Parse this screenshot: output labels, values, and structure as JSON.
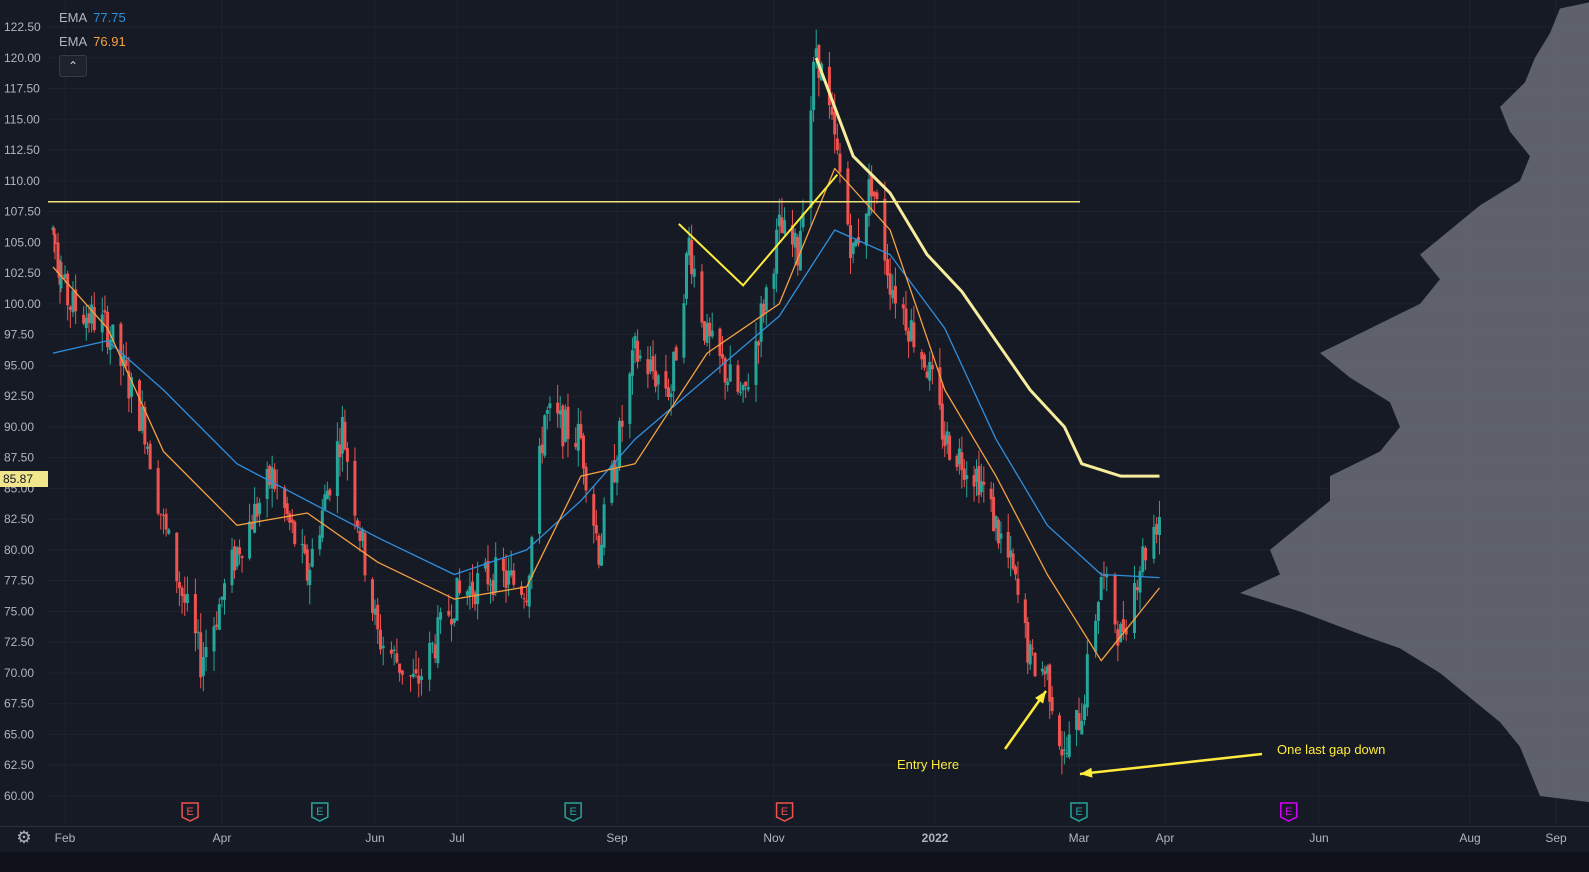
{
  "legend": {
    "ema1": {
      "label": "EMA",
      "value": "77.75",
      "color": "#2f8fdf"
    },
    "ema2": {
      "label": "EMA",
      "value": "76.91",
      "color": "#f5a142"
    }
  },
  "collapse_icon": "chevron-up-icon",
  "current_price": "85.87",
  "settings_icon": "gear-icon",
  "chart_data": {
    "type": "candlestick",
    "y_axis": {
      "range": [
        60,
        125
      ],
      "ticks": [
        "60.00",
        "62.50",
        "65.00",
        "67.50",
        "70.00",
        "72.50",
        "75.00",
        "77.50",
        "80.00",
        "82.50",
        "85.00",
        "87.50",
        "90.00",
        "92.50",
        "95.00",
        "97.50",
        "100.00",
        "102.50",
        "105.00",
        "107.50",
        "110.00",
        "112.50",
        "115.00",
        "117.50",
        "120.00",
        "122.50"
      ]
    },
    "x_axis": {
      "ticks": [
        "Feb",
        "Apr",
        "Jun",
        "Jul",
        "Sep",
        "Nov",
        "2022",
        "Mar",
        "Apr",
        "Jun",
        "Aug",
        "Sep"
      ]
    },
    "colors": {
      "up": "#26a69a",
      "down": "#ef5350",
      "grid": "#1f2330",
      "text": "#b2b5be",
      "annotation": "#ffeb3b",
      "horizontal_line": "#f2e27a",
      "volume_profile": "#6b6e78"
    },
    "price_path": [
      {
        "date": "2021-01-20",
        "price": 106
      },
      {
        "date": "2021-02-03",
        "price": 100
      },
      {
        "date": "2021-02-17",
        "price": 98
      },
      {
        "date": "2021-03-03",
        "price": 90
      },
      {
        "date": "2021-03-10",
        "price": 82
      },
      {
        "date": "2021-03-24",
        "price": 71
      },
      {
        "date": "2021-04-07",
        "price": 80
      },
      {
        "date": "2021-04-21",
        "price": 86
      },
      {
        "date": "2021-05-05",
        "price": 78
      },
      {
        "date": "2021-05-19",
        "price": 90
      },
      {
        "date": "2021-06-02",
        "price": 73
      },
      {
        "date": "2021-06-16",
        "price": 69
      },
      {
        "date": "2021-06-30",
        "price": 76
      },
      {
        "date": "2021-07-14",
        "price": 78
      },
      {
        "date": "2021-07-28",
        "price": 77
      },
      {
        "date": "2021-08-04",
        "price": 91
      },
      {
        "date": "2021-08-18",
        "price": 89
      },
      {
        "date": "2021-08-25",
        "price": 80
      },
      {
        "date": "2021-09-08",
        "price": 96
      },
      {
        "date": "2021-09-22",
        "price": 93
      },
      {
        "date": "2021-09-29",
        "price": 105
      },
      {
        "date": "2021-10-06",
        "price": 97
      },
      {
        "date": "2021-10-20",
        "price": 92
      },
      {
        "date": "2021-11-03",
        "price": 106
      },
      {
        "date": "2021-11-10",
        "price": 104
      },
      {
        "date": "2021-11-17",
        "price": 121
      },
      {
        "date": "2021-11-24",
        "price": 113
      },
      {
        "date": "2021-12-01",
        "price": 104
      },
      {
        "date": "2021-12-08",
        "price": 110
      },
      {
        "date": "2021-12-15",
        "price": 102
      },
      {
        "date": "2021-12-29",
        "price": 95
      },
      {
        "date": "2022-01-05",
        "price": 89
      },
      {
        "date": "2022-01-19",
        "price": 86
      },
      {
        "date": "2022-02-02",
        "price": 78
      },
      {
        "date": "2022-02-09",
        "price": 71
      },
      {
        "date": "2022-02-16",
        "price": 70
      },
      {
        "date": "2022-02-23",
        "price": 63
      },
      {
        "date": "2022-03-02",
        "price": 67
      },
      {
        "date": "2022-03-09",
        "price": 78
      },
      {
        "date": "2022-03-16",
        "price": 73
      },
      {
        "date": "2022-03-23",
        "price": 79
      },
      {
        "date": "2022-03-30",
        "price": 83
      }
    ],
    "ema_fast": [
      {
        "date": "2021-01-20",
        "price": 103
      },
      {
        "date": "2021-02-17",
        "price": 98
      },
      {
        "date": "2021-03-10",
        "price": 88
      },
      {
        "date": "2021-04-07",
        "price": 82
      },
      {
        "date": "2021-05-05",
        "price": 83
      },
      {
        "date": "2021-06-02",
        "price": 79
      },
      {
        "date": "2021-06-30",
        "price": 76
      },
      {
        "date": "2021-07-28",
        "price": 77
      },
      {
        "date": "2021-08-18",
        "price": 86
      },
      {
        "date": "2021-09-08",
        "price": 87
      },
      {
        "date": "2021-10-06",
        "price": 96
      },
      {
        "date": "2021-11-03",
        "price": 100
      },
      {
        "date": "2021-11-24",
        "price": 111
      },
      {
        "date": "2021-12-15",
        "price": 106
      },
      {
        "date": "2022-01-05",
        "price": 93
      },
      {
        "date": "2022-01-26",
        "price": 86
      },
      {
        "date": "2022-02-16",
        "price": 78
      },
      {
        "date": "2022-03-09",
        "price": 71
      },
      {
        "date": "2022-03-30",
        "price": 76.91
      }
    ],
    "ema_slow": [
      {
        "date": "2021-01-20",
        "price": 96
      },
      {
        "date": "2021-02-17",
        "price": 97
      },
      {
        "date": "2021-03-10",
        "price": 93
      },
      {
        "date": "2021-04-07",
        "price": 87
      },
      {
        "date": "2021-05-05",
        "price": 84
      },
      {
        "date": "2021-06-02",
        "price": 81
      },
      {
        "date": "2021-06-30",
        "price": 78
      },
      {
        "date": "2021-07-28",
        "price": 80
      },
      {
        "date": "2021-08-18",
        "price": 84
      },
      {
        "date": "2021-09-08",
        "price": 89
      },
      {
        "date": "2021-10-06",
        "price": 94
      },
      {
        "date": "2021-11-03",
        "price": 99
      },
      {
        "date": "2021-11-24",
        "price": 106
      },
      {
        "date": "2021-12-15",
        "price": 104
      },
      {
        "date": "2022-01-05",
        "price": 98
      },
      {
        "date": "2022-01-26",
        "price": 89
      },
      {
        "date": "2022-02-16",
        "price": 82
      },
      {
        "date": "2022-03-09",
        "price": 78
      },
      {
        "date": "2022-03-30",
        "price": 77.75
      }
    ],
    "ma_long": [
      {
        "date": "2021-11-17",
        "price": 120
      },
      {
        "date": "2021-11-24",
        "price": 116
      },
      {
        "date": "2021-12-01",
        "price": 112
      },
      {
        "date": "2021-12-15",
        "price": 109
      },
      {
        "date": "2021-12-29",
        "price": 104
      },
      {
        "date": "2022-01-12",
        "price": 101
      },
      {
        "date": "2022-01-26",
        "price": 97
      },
      {
        "date": "2022-02-09",
        "price": 93
      },
      {
        "date": "2022-02-23",
        "price": 90
      },
      {
        "date": "2022-03-02",
        "price": 87
      },
      {
        "date": "2022-03-16",
        "price": 86
      },
      {
        "date": "2022-03-30",
        "price": 86
      }
    ],
    "horizontal_level": 108.3,
    "earnings_markers": [
      "E",
      "E",
      "E",
      "E",
      "E",
      "E"
    ],
    "annotations": {
      "entry": "Entry Here",
      "gap": "One last gap down"
    }
  }
}
